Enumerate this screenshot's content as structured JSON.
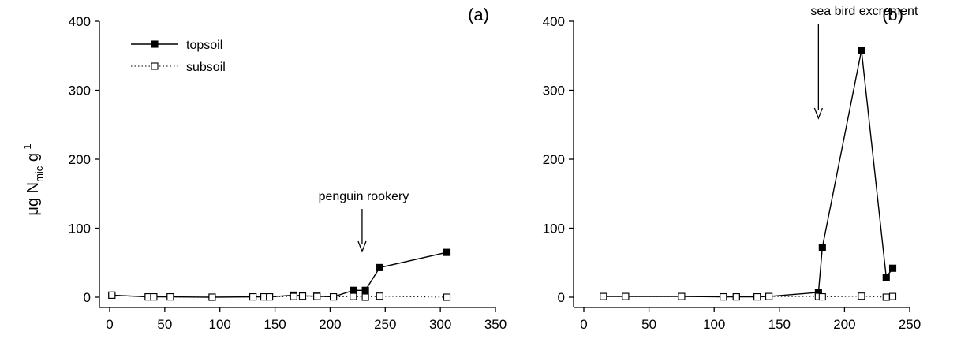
{
  "figure": {
    "ylabel_prefix": "μg N",
    "ylabel_sub": "mic",
    "ylabel_unit": " g",
    "ylabel_sup": "-1"
  },
  "chart_data": [
    {
      "type": "line",
      "panel_label": "(a)",
      "xlim": [
        0,
        350
      ],
      "ylim": [
        0,
        400
      ],
      "xticks": [
        0,
        50,
        100,
        150,
        200,
        250,
        300,
        350
      ],
      "yticks": [
        0,
        100,
        200,
        300,
        400
      ],
      "grid": false,
      "legend": {
        "position": "top-left"
      },
      "series": [
        {
          "name": "topsoil",
          "style": "solid",
          "marker": "filled-square",
          "x": [
            2,
            35,
            40,
            55,
            93,
            130,
            140,
            145,
            167,
            175,
            188,
            203,
            221,
            232,
            245,
            306
          ],
          "y": [
            3,
            0.5,
            0.5,
            0.5,
            0,
            0.5,
            0.5,
            0.5,
            3,
            2,
            1.5,
            0.5,
            10,
            10,
            43,
            65
          ]
        },
        {
          "name": "subsoil",
          "style": "dotted",
          "marker": "open-square",
          "x": [
            2,
            35,
            40,
            55,
            93,
            130,
            140,
            145,
            167,
            175,
            188,
            203,
            221,
            232,
            245,
            306
          ],
          "y": [
            3,
            0.5,
            0.5,
            0.5,
            0,
            0.5,
            0.5,
            0.5,
            1,
            1.5,
            1,
            0.5,
            1,
            0,
            1.5,
            0
          ]
        }
      ],
      "annotation": {
        "text": "penguin rookery",
        "x": 229,
        "y": 0
      }
    },
    {
      "type": "line",
      "panel_label": "(b)",
      "xlim": [
        0,
        250
      ],
      "ylim": [
        0,
        400
      ],
      "xticks": [
        0,
        50,
        100,
        150,
        200,
        250
      ],
      "yticks": [
        0,
        100,
        200,
        300,
        400
      ],
      "grid": false,
      "series": [
        {
          "name": "topsoil",
          "style": "solid",
          "marker": "filled-square",
          "x": [
            15,
            32,
            75,
            107,
            117,
            133,
            142,
            180,
            183,
            213,
            232,
            237
          ],
          "y": [
            1,
            1,
            1,
            0.5,
            0.5,
            0.5,
            1,
            7,
            72,
            358,
            29,
            42
          ]
        },
        {
          "name": "subsoil",
          "style": "dotted",
          "marker": "open-square",
          "x": [
            15,
            32,
            75,
            107,
            117,
            133,
            142,
            180,
            183,
            213,
            232,
            237
          ],
          "y": [
            1,
            1,
            1,
            0.5,
            0.5,
            0.5,
            1,
            1,
            0.5,
            1.5,
            0,
            1
          ]
        }
      ],
      "annotation": {
        "text": "sea bird excrement",
        "x": 180,
        "y": 0
      }
    }
  ]
}
